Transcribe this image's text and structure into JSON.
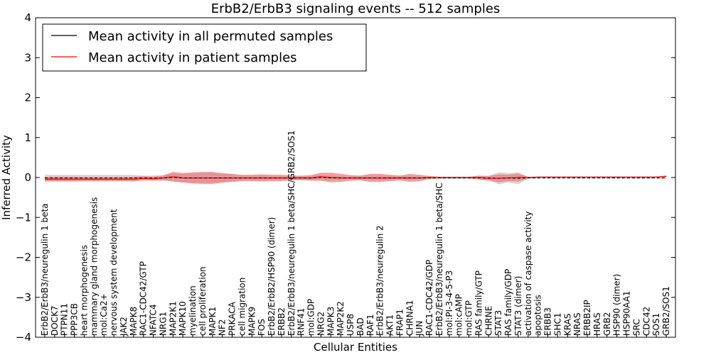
{
  "chart_data": {
    "type": "line",
    "title": "ErbB2/ErbB3 signaling events -- 512 samples",
    "xlabel": "Cellular Entities",
    "ylabel": "Inferred Activity",
    "ylim": [
      -4,
      4
    ],
    "yticks": [
      "4",
      "3",
      "2",
      "1",
      "0",
      "−1",
      "−2",
      "−3",
      "−4"
    ],
    "grid": false,
    "legend_position": "top-left",
    "categories": [
      "ErbB2/ErbB3/neuregulin 1 beta",
      "DOCK7",
      "PTPN11",
      "PPP3CB",
      "heart morphogenesis",
      "mammary gland morphogenesis",
      "mol:Ca2+",
      "nervous system development",
      "JAK2",
      "MAPK8",
      "RAC1-CDC42/GTP",
      "NFATC4",
      "NRG1",
      "MAP2K1",
      "MAPK10",
      "myelination",
      "cell proliferation",
      "MAPK1",
      "NF2",
      "PRKACA",
      "cell migration",
      "MAPK9",
      "FOS",
      "ErbB2/ErbB2/HSP90 (dimer)",
      "ERBB2",
      "ErbB2/ErbB3/neuregulin 1 beta/SHC/GRB2/SOS1",
      "RNF41",
      "mol:GDP",
      "NRG2",
      "MAPK3",
      "MAP2K2",
      "USP8",
      "BAD",
      "RAF1",
      "ErbB2/ErbB3/neuregulin 2",
      "AKT1",
      "FRAP1",
      "CHRNA1",
      "JUN",
      "RAC1-CDC42/GDP",
      "ErbB2/ErbB3/neuregulin 1 beta/SHC",
      "mol:PI-3-4-5-P3",
      "mol:cAMP",
      "mol:GTP",
      "RAS family/GTP",
      "CHRNE",
      "STAT3",
      "RAS family/GDP",
      "STAT3 (dimer)",
      "activation of caspase activity",
      "apoptosis",
      "ERBB3",
      "SHC1",
      "KRAS",
      "NRAS",
      "ERBB2IP",
      "HRAS",
      "GRB2",
      "HSP90 (dimer)",
      "HSP90AA1",
      "SRC",
      "CDC42",
      "SOS1",
      "GRB2/SOS1"
    ],
    "series": [
      {
        "name": "Mean activity in all permuted samples",
        "color": "#000000",
        "values": [
          -0.01,
          -0.01,
          -0.01,
          -0.01,
          -0.01,
          -0.01,
          -0.01,
          -0.01,
          -0.01,
          -0.01,
          -0.01,
          -0.01,
          -0.01,
          0.0,
          -0.01,
          -0.01,
          -0.01,
          -0.01,
          -0.01,
          -0.01,
          -0.01,
          -0.01,
          -0.01,
          -0.01,
          -0.01,
          -0.01,
          -0.01,
          -0.01,
          0.0,
          -0.01,
          -0.01,
          -0.01,
          -0.01,
          -0.01,
          -0.01,
          -0.01,
          -0.01,
          -0.01,
          -0.01,
          -0.01,
          -0.01,
          -0.01,
          -0.01,
          -0.01,
          -0.01,
          -0.01,
          -0.02,
          -0.01,
          -0.02,
          -0.01,
          -0.01,
          -0.01,
          -0.01,
          -0.01,
          -0.01,
          -0.01,
          -0.01,
          -0.01,
          -0.01,
          -0.01,
          -0.01,
          -0.01,
          -0.01,
          -0.01
        ],
        "band": [
          0.08,
          0.08,
          0.08,
          0.08,
          0.08,
          0.08,
          0.08,
          0.08,
          0.08,
          0.08,
          0.06,
          0.06,
          0.07,
          0.1,
          0.1,
          0.12,
          0.12,
          0.12,
          0.1,
          0.08,
          0.06,
          0.06,
          0.06,
          0.05,
          0.05,
          0.05,
          0.06,
          0.06,
          0.06,
          0.06,
          0.05,
          0.04,
          0.04,
          0.06,
          0.06,
          0.05,
          0.04,
          0.05,
          0.04,
          0.02,
          0.02,
          0.02,
          0.02,
          0.02,
          0.04,
          0.05,
          0.15,
          0.12,
          0.15,
          0.02,
          0.02,
          0.02,
          0.02,
          0.02,
          0.02,
          0.02,
          0.02,
          0.02,
          0.02,
          0.02,
          0.02,
          0.02,
          0.02,
          0.03
        ]
      },
      {
        "name": "Mean activity in patient samples",
        "color": "#ff0000",
        "fill_color": "#e8787a",
        "values": [
          -0.04,
          -0.04,
          -0.04,
          -0.04,
          -0.04,
          -0.04,
          -0.04,
          -0.04,
          -0.04,
          -0.04,
          -0.02,
          -0.03,
          -0.01,
          0.02,
          -0.01,
          -0.01,
          -0.01,
          -0.01,
          -0.01,
          -0.01,
          -0.01,
          -0.01,
          -0.01,
          -0.01,
          -0.01,
          -0.01,
          -0.01,
          -0.01,
          0.02,
          0.0,
          -0.01,
          -0.01,
          -0.01,
          -0.01,
          -0.01,
          -0.01,
          -0.01,
          -0.01,
          -0.01,
          0.0,
          0.0,
          0.0,
          0.0,
          0.0,
          0.0,
          -0.02,
          -0.02,
          -0.01,
          0.0,
          0.0,
          0.01,
          0.01,
          0.01,
          0.01,
          0.01,
          0.01,
          0.01,
          0.01,
          0.01,
          0.01,
          0.01,
          0.01,
          0.01,
          0.03
        ],
        "band": [
          0.06,
          0.06,
          0.06,
          0.06,
          0.05,
          0.05,
          0.05,
          0.05,
          0.05,
          0.06,
          0.05,
          0.05,
          0.06,
          0.12,
          0.12,
          0.14,
          0.15,
          0.15,
          0.12,
          0.1,
          0.08,
          0.08,
          0.09,
          0.08,
          0.08,
          0.06,
          0.05,
          0.07,
          0.1,
          0.12,
          0.1,
          0.07,
          0.06,
          0.1,
          0.1,
          0.08,
          0.06,
          0.1,
          0.08,
          0.04,
          0.02,
          0.02,
          0.02,
          0.02,
          0.05,
          0.06,
          0.1,
          0.08,
          0.1,
          0.02,
          0.01,
          0.01,
          0.01,
          0.01,
          0.01,
          0.01,
          0.01,
          0.01,
          0.01,
          0.01,
          0.01,
          0.01,
          0.01,
          0.02
        ]
      }
    ]
  }
}
